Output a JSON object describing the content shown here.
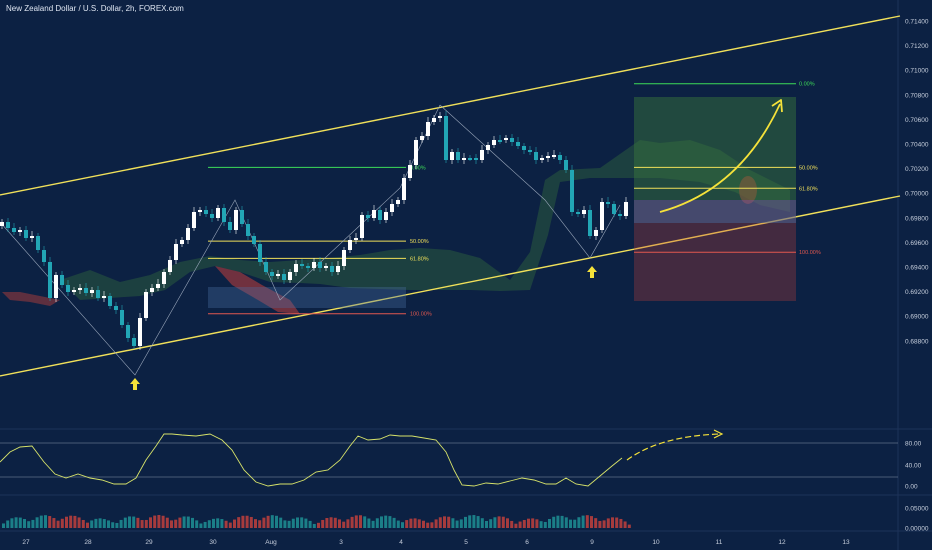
{
  "title": "New Zealand Dollar / U.S. Dollar, 2h, FOREX.com",
  "colors": {
    "background": "#0c2143",
    "bull": "#ffffff",
    "bear": "#22a6b5",
    "channel": "#f0e05a",
    "fib_green": "#3ddc58",
    "fib_yellow": "#f0e05a",
    "fib_red": "#e2584f",
    "cloud_green": "#3b7a3c",
    "cloud_red": "#c2403c",
    "arrow": "#f5e23a",
    "volume_up": "#1f8f94",
    "volume_down": "#c2403c"
  },
  "price_axis": {
    "min": 0.679,
    "max": 0.715,
    "ticks": [
      "0.71400",
      "0.71200",
      "0.71000",
      "0.70800",
      "0.70600",
      "0.70400",
      "0.70200",
      "0.70000",
      "0.69800",
      "0.69600",
      "0.69400",
      "0.69200",
      "0.69000",
      "0.68800"
    ]
  },
  "oscillator_axis": {
    "ticks": [
      "80.00",
      "40.00",
      "0.00"
    ],
    "levels": [
      80,
      20
    ]
  },
  "volume_axis": {
    "ticks": [
      "0.05000",
      "0.00000"
    ]
  },
  "time_axis": {
    "labels": [
      "27",
      "28",
      "29",
      "30",
      "Aug",
      "3",
      "4",
      "5",
      "6",
      "9",
      "10",
      "11",
      "12",
      "13"
    ]
  },
  "fib_left": {
    "levels": [
      {
        "label": "0.00%",
        "price": 0.7021,
        "color": "#3ddc58"
      },
      {
        "label": "50.00%",
        "price": 0.6961,
        "color": "#f0e05a"
      },
      {
        "label": "61.80%",
        "price": 0.6947,
        "color": "#f0e05a"
      },
      {
        "label": "100.00%",
        "price": 0.6902,
        "color": "#e2584f"
      }
    ]
  },
  "fib_right": {
    "levels": [
      {
        "label": "0.00%",
        "price": 0.7089,
        "color": "#3ddc58"
      },
      {
        "label": "50.00%",
        "price": 0.7021,
        "color": "#f0e05a"
      },
      {
        "label": "61.80%",
        "price": 0.7004,
        "color": "#f0e05a"
      },
      {
        "label": "100.00%",
        "price": 0.6952,
        "color": "#e2584f"
      }
    ]
  }
}
